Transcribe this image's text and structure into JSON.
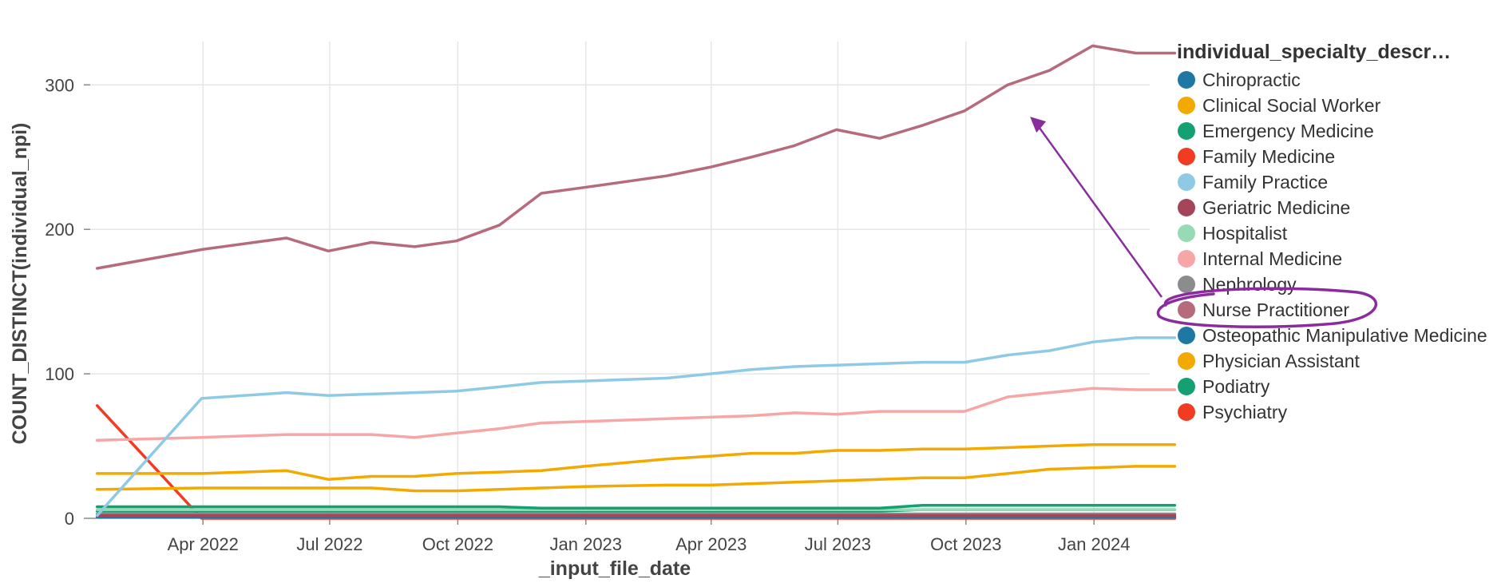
{
  "chart_data": {
    "type": "line",
    "xlabel": "_input_file_date",
    "ylabel": "COUNT_DISTINCT(individual_npi)",
    "x_ticks": [
      "Apr 2022",
      "Jul 2022",
      "Oct 2022",
      "Jan 2023",
      "Apr 2023",
      "Jul 2023",
      "Oct 2023",
      "Jan 2024"
    ],
    "y_ticks": [
      0,
      100,
      200,
      300
    ],
    "ylim": [
      0,
      330
    ],
    "x_domain": [
      "2022-01-10",
      "2024-02-10"
    ],
    "grid": true,
    "legend": {
      "title": "individual_specialty_descr…",
      "placement": "right",
      "items": [
        {
          "name": "Chiropractic",
          "color": "#1f77a4"
        },
        {
          "name": "Clinical Social Worker",
          "color": "#f2a900"
        },
        {
          "name": "Emergency Medicine",
          "color": "#14a073"
        },
        {
          "name": "Family Medicine",
          "color": "#f23c22"
        },
        {
          "name": "Family Practice",
          "color": "#8ecae6"
        },
        {
          "name": "Geriatric Medicine",
          "color": "#a4455a"
        },
        {
          "name": "Hospitalist",
          "color": "#96dbb3"
        },
        {
          "name": "Internal Medicine",
          "color": "#f6a6a6"
        },
        {
          "name": "Nephrology",
          "color": "#8c8c8c"
        },
        {
          "name": "Nurse Practitioner",
          "color": "#b66b7d"
        },
        {
          "name": "Osteopathic Manipulative Medicine",
          "color": "#1f77a4"
        },
        {
          "name": "Physician Assistant",
          "color": "#f2a900"
        },
        {
          "name": "Podiatry",
          "color": "#14a073"
        },
        {
          "name": "Psychiatry",
          "color": "#f23c22"
        }
      ]
    },
    "x": [
      "2022-01-15",
      "2022-03-31",
      "2022-05-31",
      "2022-06-30",
      "2022-07-31",
      "2022-08-31",
      "2022-09-30",
      "2022-10-31",
      "2022-11-30",
      "2022-12-31",
      "2023-02-28",
      "2023-03-31",
      "2023-04-30",
      "2023-05-31",
      "2023-06-30",
      "2023-07-31",
      "2023-08-31",
      "2023-09-30",
      "2023-10-31",
      "2023-11-30",
      "2023-12-31",
      "2024-01-31",
      "2024-02-28"
    ],
    "series": [
      {
        "name": "Nurse Practitioner",
        "color": "#b66b7d",
        "values": [
          173,
          186,
          194,
          185,
          191,
          188,
          192,
          203,
          225,
          229,
          237,
          243,
          250,
          258,
          269,
          263,
          272,
          282,
          300,
          310,
          327,
          322,
          322
        ]
      },
      {
        "name": "Family Practice",
        "color": "#8ecae6",
        "values": [
          2,
          83,
          87,
          85,
          86,
          87,
          88,
          91,
          94,
          95,
          97,
          100,
          103,
          105,
          106,
          107,
          108,
          108,
          113,
          116,
          122,
          125,
          125
        ]
      },
      {
        "name": "Internal Medicine",
        "color": "#f6a6a6",
        "values": [
          54,
          56,
          58,
          58,
          58,
          56,
          59,
          62,
          66,
          67,
          69,
          70,
          71,
          73,
          72,
          74,
          74,
          74,
          84,
          87,
          90,
          89,
          89
        ]
      },
      {
        "name": "Physician Assistant",
        "color": "#f2a900",
        "values": [
          31,
          31,
          33,
          27,
          29,
          29,
          31,
          32,
          33,
          36,
          41,
          43,
          45,
          45,
          47,
          47,
          48,
          48,
          49,
          50,
          51,
          51,
          51
        ]
      },
      {
        "name": "Clinical Social Worker",
        "color": "#f2a900",
        "values": [
          20,
          21,
          21,
          21,
          21,
          19,
          19,
          20,
          21,
          22,
          23,
          23,
          24,
          25,
          26,
          27,
          28,
          28,
          31,
          34,
          35,
          36,
          36
        ]
      },
      {
        "name": "Podiatry",
        "color": "#14a073",
        "values": [
          8,
          8,
          8,
          8,
          8,
          8,
          8,
          8,
          7,
          7,
          7,
          7,
          7,
          7,
          7,
          7,
          9,
          9,
          9,
          9,
          9,
          9,
          9
        ]
      },
      {
        "name": "Hospitalist",
        "color": "#96dbb3",
        "values": [
          6,
          6,
          6,
          6,
          6,
          6,
          6,
          6,
          6,
          6,
          6,
          6,
          6,
          6,
          6,
          6,
          6,
          6,
          6,
          6,
          6,
          6,
          6
        ]
      },
      {
        "name": "Emergency Medicine",
        "color": "#14a073",
        "values": [
          5,
          5,
          5,
          5,
          5,
          5,
          5,
          5,
          5,
          5,
          5,
          5,
          5,
          5,
          5,
          5,
          6,
          6,
          6,
          6,
          6,
          6,
          6
        ]
      },
      {
        "name": "Geriatric Medicine",
        "color": "#a4455a",
        "values": [
          2,
          2,
          2,
          2,
          2,
          2,
          2,
          2,
          2,
          2,
          2,
          2,
          2,
          2,
          2,
          2,
          2,
          2,
          2,
          2,
          2,
          2,
          2
        ]
      },
      {
        "name": "Nephrology",
        "color": "#8c8c8c",
        "values": [
          3,
          3,
          3,
          3,
          3,
          3,
          3,
          3,
          3,
          3,
          3,
          3,
          3,
          3,
          3,
          3,
          3,
          3,
          3,
          3,
          3,
          3,
          3
        ]
      },
      {
        "name": "Chiropractic",
        "color": "#1f77a4",
        "values": [
          1,
          1,
          1,
          1,
          1,
          1,
          1,
          1,
          1,
          1,
          1,
          1,
          1,
          1,
          1,
          1,
          1,
          1,
          1,
          1,
          1,
          1,
          1
        ]
      },
      {
        "name": "Osteopathic Manipulative Medicine",
        "color": "#1f77a4",
        "values": [
          3,
          3,
          3,
          3,
          3,
          3,
          3,
          3,
          3,
          3,
          3,
          3,
          3,
          3,
          3,
          3,
          3,
          3,
          3,
          3,
          3,
          3,
          3
        ]
      },
      {
        "name": "Psychiatry",
        "color": "#f23c22",
        "values": [
          1,
          1,
          1,
          1,
          1,
          1,
          1,
          1,
          1,
          1,
          1,
          1,
          1,
          1,
          1,
          1,
          1,
          1,
          1,
          1,
          1,
          1,
          1
        ]
      },
      {
        "name": "Family Medicine",
        "color": "#f23c22",
        "values": [
          78,
          0,
          0,
          0,
          0,
          0,
          0,
          0,
          0,
          0,
          0,
          0,
          0,
          0,
          0,
          0,
          0,
          0,
          0,
          0,
          0,
          0,
          0
        ]
      }
    ],
    "annotations": [
      {
        "type": "circle",
        "target": "Nurse Practitioner",
        "color": "#8b2c9e"
      },
      {
        "type": "arrow",
        "from": "Nurse Practitioner",
        "to_x": "2023-10-31",
        "to_y": 278,
        "color": "#8b2c9e"
      }
    ]
  }
}
